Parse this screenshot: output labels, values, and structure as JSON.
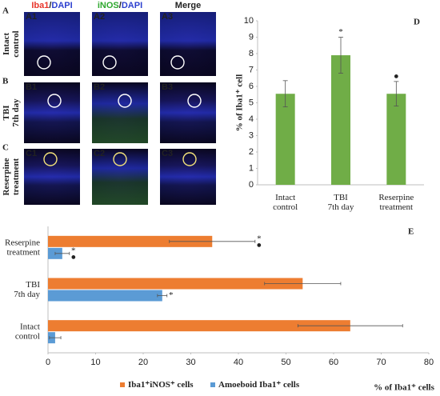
{
  "figure": {
    "columns": [
      [
        {
          "text": "Iba1",
          "color": "#e8342a"
        },
        {
          "text": "/",
          "color": "#222222"
        },
        {
          "text": "DAPI",
          "color": "#2c3fcf"
        }
      ],
      [
        {
          "text": "iNOS",
          "color": "#2ea82e"
        },
        {
          "text": "/",
          "color": "#222222"
        },
        {
          "text": "DAPI",
          "color": "#2c3fcf"
        }
      ],
      [
        {
          "text": "Merge",
          "color": "#222222"
        }
      ]
    ],
    "rows": [
      "Intact\ncontrol",
      "TBI\n7th day",
      "Reserpine\ntreatment"
    ],
    "row_letters": [
      "A",
      "B",
      "C"
    ],
    "panels": [
      [
        "A1",
        "A2",
        "A3"
      ],
      [
        "B1",
        "B2",
        "B3"
      ],
      [
        "C1",
        "C2",
        "C3"
      ]
    ]
  },
  "chart_data": [
    {
      "type": "bar",
      "panel": "D",
      "ylabel": "% of Iba1⁺ cell",
      "categories": [
        "Intact\ncontrol",
        "TBI\n7th day",
        "Reserpine\ntreatment"
      ],
      "values": [
        5.55,
        7.9,
        5.55
      ],
      "errors": [
        0.8,
        1.1,
        0.75
      ],
      "color": "#70ad47",
      "ylim": [
        0,
        10
      ],
      "yticks": [
        0,
        1,
        2,
        3,
        4,
        5,
        6,
        7,
        8,
        9,
        10
      ],
      "grid": false,
      "annotations": [
        {
          "text": "*",
          "index": 1
        },
        {
          "text": "●",
          "index": 2
        }
      ]
    },
    {
      "type": "barh",
      "panel": "E",
      "xlabel": "% of Iba1⁺ cells",
      "categories": [
        "Intact\ncontrol",
        "TBI\n7th day",
        "Reserpine\ntreatment"
      ],
      "series": [
        {
          "name": "Iba1⁺iNOS⁺ cells",
          "color": "#ed7d31",
          "values": [
            63.5,
            53.5,
            34.5
          ],
          "errors": [
            11,
            8,
            9
          ]
        },
        {
          "name": "Amoeboid Iba1⁺ cells",
          "color": "#5b9bd5",
          "values": [
            1.5,
            24,
            3
          ],
          "errors": [
            1.2,
            1,
            1.5
          ]
        }
      ],
      "xlim": [
        0,
        80
      ],
      "xticks": [
        0,
        10,
        20,
        30,
        40,
        50,
        60,
        70,
        80
      ],
      "grid": false,
      "legend": "bottom",
      "annotations": [
        {
          "text": "*",
          "series": 0,
          "index": 2
        },
        {
          "text": "●",
          "series": 0,
          "index": 2
        },
        {
          "text": "*",
          "series": 1,
          "index": 2
        },
        {
          "text": "●",
          "series": 1,
          "index": 2
        },
        {
          "text": "*",
          "series": 1,
          "index": 1
        }
      ]
    }
  ]
}
